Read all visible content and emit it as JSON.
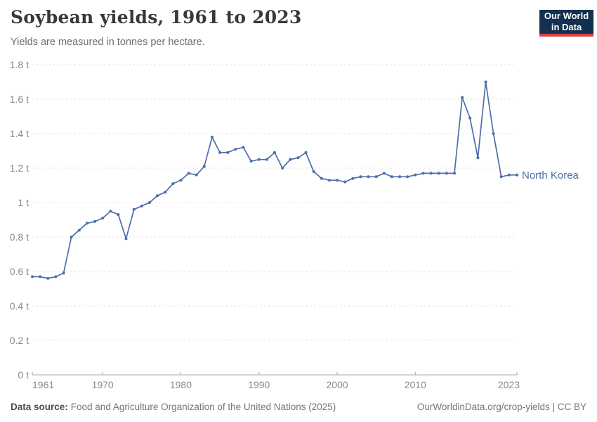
{
  "header": {
    "title": "Soybean yields, 1961 to 2023",
    "subtitle": "Yields are measured in tonnes per hectare.",
    "logo_line1": "Our World",
    "logo_line2": "in Data"
  },
  "footer": {
    "source_label": "Data source:",
    "source_text": "Food and Agriculture Organization of the United Nations (2025)",
    "credit": "OurWorldinData.org/crop-yields | CC BY"
  },
  "colors": {
    "line": "#4c6ea9",
    "gridline": "#dcdcdc",
    "axis": "#a8a8a8",
    "tick_label": "#8a8a8a",
    "logo_bg": "#14304f",
    "logo_red": "#dd3e44"
  },
  "chart_data": {
    "type": "line",
    "title": "Soybean yields, 1961 to 2023",
    "ylabel": "tonnes per hectare",
    "xlabel": "",
    "xlim": [
      1961,
      2023
    ],
    "ylim": [
      0,
      1.8
    ],
    "grid": "horizontal-dashed",
    "legend_position": "end-of-line",
    "x_ticks": [
      {
        "v": 1961,
        "label": "1961"
      },
      {
        "v": 1970,
        "label": "1970"
      },
      {
        "v": 1980,
        "label": "1980"
      },
      {
        "v": 1990,
        "label": "1990"
      },
      {
        "v": 2000,
        "label": "2000"
      },
      {
        "v": 2010,
        "label": "2010"
      },
      {
        "v": 2023,
        "label": "2023"
      }
    ],
    "y_ticks": [
      {
        "v": 0,
        "label": "0 t"
      },
      {
        "v": 0.2,
        "label": "0.2 t"
      },
      {
        "v": 0.4,
        "label": "0.4 t"
      },
      {
        "v": 0.6,
        "label": "0.6 t"
      },
      {
        "v": 0.8,
        "label": "0.8 t"
      },
      {
        "v": 1,
        "label": "1 t"
      },
      {
        "v": 1.2,
        "label": "1.2 t"
      },
      {
        "v": 1.4,
        "label": "1.4 t"
      },
      {
        "v": 1.6,
        "label": "1.6 t"
      },
      {
        "v": 1.8,
        "label": "1.8 t"
      }
    ],
    "series": [
      {
        "name": "North Korea",
        "color": "#4c6ea9",
        "x": [
          1961,
          1962,
          1963,
          1964,
          1965,
          1966,
          1967,
          1968,
          1969,
          1970,
          1971,
          1972,
          1973,
          1974,
          1975,
          1976,
          1977,
          1978,
          1979,
          1980,
          1981,
          1982,
          1983,
          1984,
          1985,
          1986,
          1987,
          1988,
          1989,
          1990,
          1991,
          1992,
          1993,
          1994,
          1995,
          1996,
          1997,
          1998,
          1999,
          2000,
          2001,
          2002,
          2003,
          2004,
          2005,
          2006,
          2007,
          2008,
          2009,
          2010,
          2011,
          2012,
          2013,
          2014,
          2015,
          2016,
          2017,
          2018,
          2019,
          2020,
          2021,
          2022,
          2023
        ],
        "values": [
          0.57,
          0.57,
          0.56,
          0.57,
          0.59,
          0.8,
          0.84,
          0.88,
          0.89,
          0.91,
          0.95,
          0.93,
          0.79,
          0.96,
          0.98,
          1.0,
          1.04,
          1.06,
          1.11,
          1.13,
          1.17,
          1.16,
          1.21,
          1.38,
          1.29,
          1.29,
          1.31,
          1.32,
          1.24,
          1.25,
          1.25,
          1.29,
          1.2,
          1.25,
          1.26,
          1.29,
          1.18,
          1.14,
          1.13,
          1.13,
          1.12,
          1.14,
          1.15,
          1.15,
          1.15,
          1.17,
          1.15,
          1.15,
          1.15,
          1.16,
          1.17,
          1.17,
          1.17,
          1.17,
          1.17,
          1.61,
          1.49,
          1.26,
          1.7,
          1.4,
          1.15,
          1.16,
          1.16
        ]
      }
    ]
  }
}
